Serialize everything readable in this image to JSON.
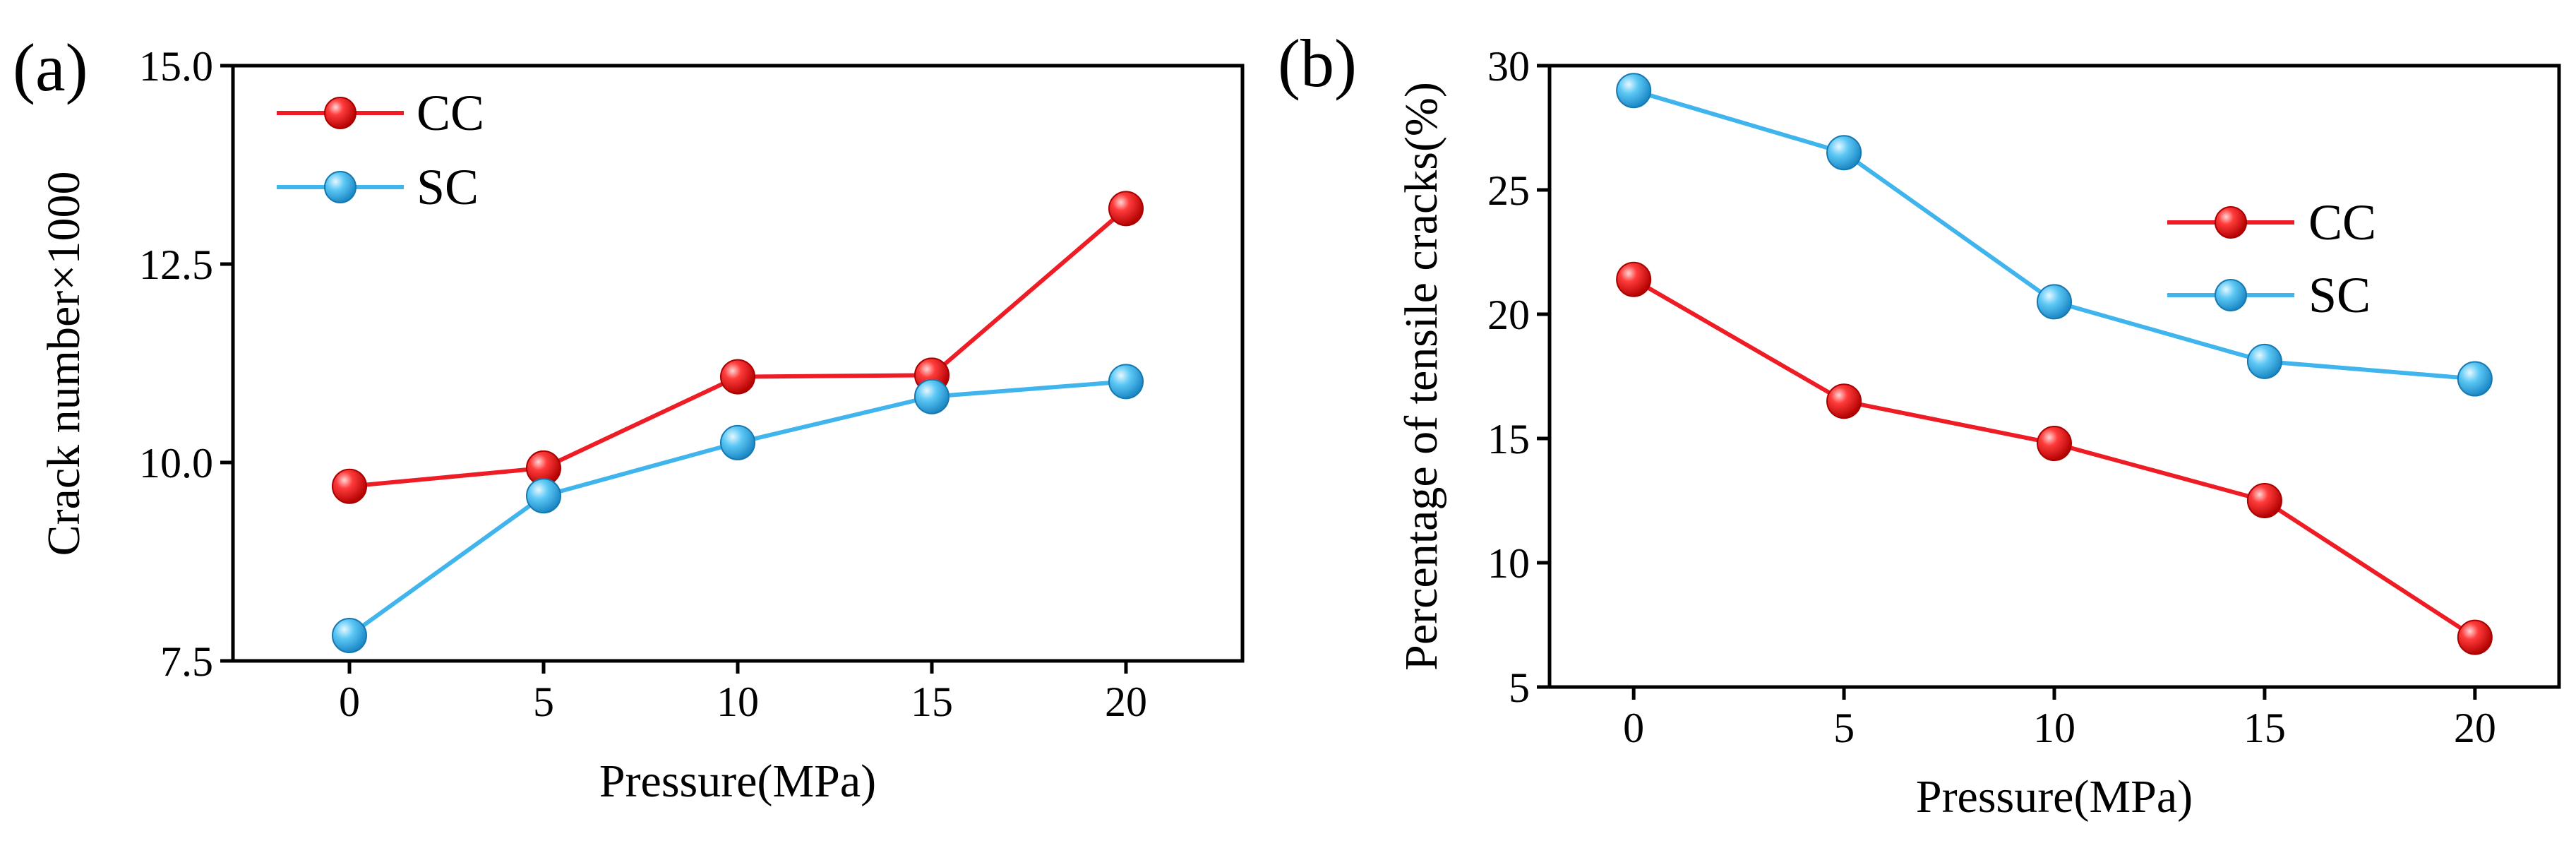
{
  "chart_data": [
    {
      "id": "a",
      "panel_label": "(a)",
      "type": "line",
      "xlabel": "Pressure(MPa)",
      "ylabel": "Crack number×1000",
      "x": [
        0,
        5,
        10,
        15,
        20
      ],
      "xlim": [
        -3,
        23
      ],
      "ylim": [
        7.5,
        15.0
      ],
      "xticks": [
        "0",
        "5",
        "10",
        "15",
        "20"
      ],
      "yticks": [
        "7.5",
        "10.0",
        "12.5",
        "15.0"
      ],
      "ytick_values": [
        7.5,
        10.0,
        12.5,
        15.0
      ],
      "legend_position": "top-left",
      "series": [
        {
          "name": "CC",
          "color": "#ee1c25",
          "values": [
            9.7,
            9.93,
            11.08,
            11.1,
            13.2
          ]
        },
        {
          "name": "SC",
          "color": "#40b4ec",
          "values": [
            7.82,
            9.58,
            10.25,
            10.83,
            11.02
          ]
        }
      ]
    },
    {
      "id": "b",
      "panel_label": "(b)",
      "type": "line",
      "xlabel": "Pressure(MPa)",
      "ylabel": "Percentage of tensile cracks(%)",
      "x": [
        0,
        5,
        10,
        15,
        20
      ],
      "xlim": [
        -2,
        22
      ],
      "ylim": [
        5,
        30
      ],
      "xticks": [
        "0",
        "5",
        "10",
        "15",
        "20"
      ],
      "yticks": [
        "5",
        "10",
        "15",
        "20",
        "25",
        "30"
      ],
      "ytick_values": [
        5,
        10,
        15,
        20,
        25,
        30
      ],
      "legend_position": "center-right",
      "series": [
        {
          "name": "CC",
          "color": "#ee1c25",
          "values": [
            21.4,
            16.5,
            14.8,
            12.5,
            7.0
          ]
        },
        {
          "name": "SC",
          "color": "#40b4ec",
          "values": [
            29.0,
            26.5,
            20.5,
            18.1,
            17.4
          ]
        }
      ]
    }
  ]
}
